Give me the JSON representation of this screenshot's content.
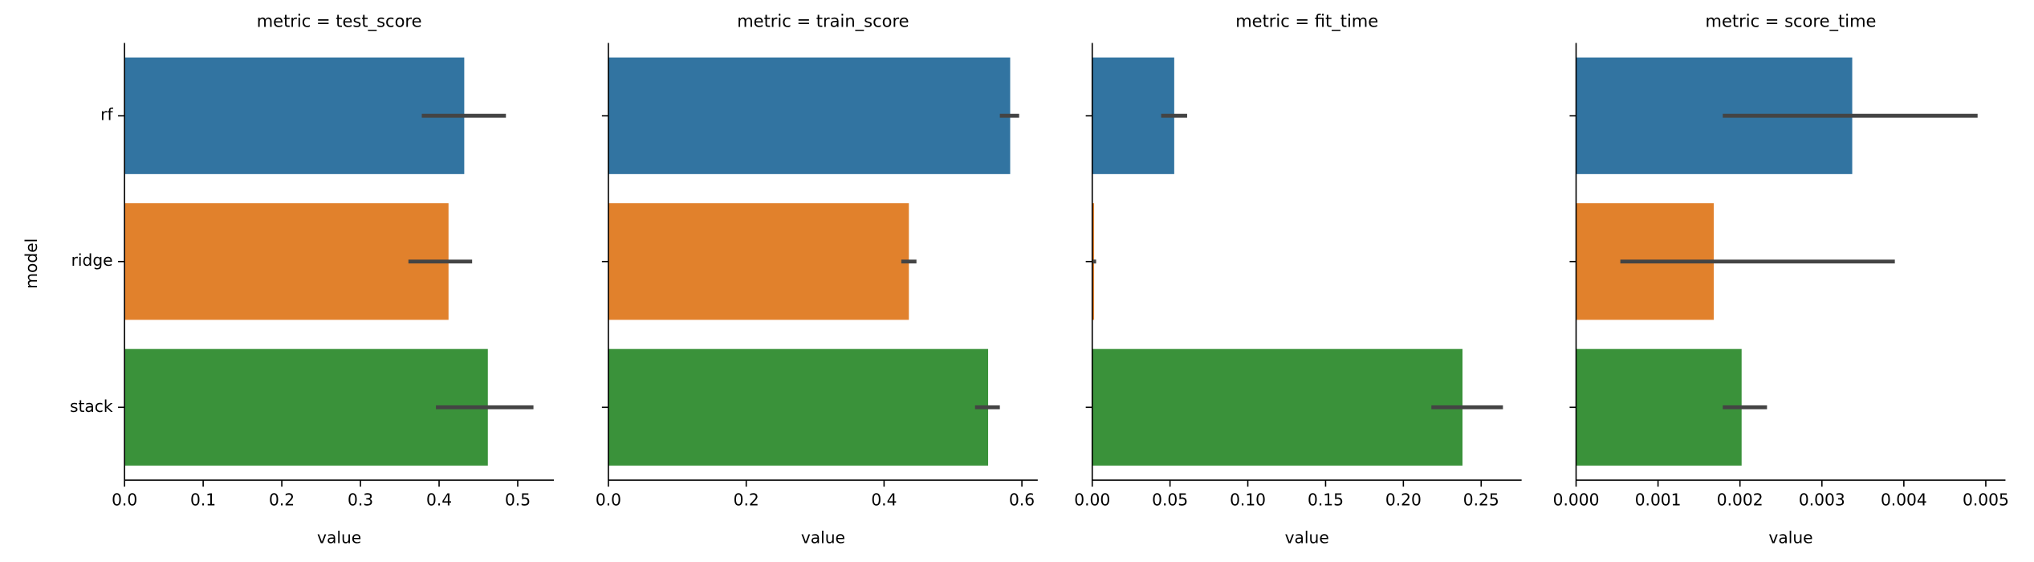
{
  "chart_data": [
    {
      "type": "bar",
      "orientation": "horizontal",
      "title": "metric = test_score",
      "xlabel": "value",
      "ylabel": "model",
      "categories": [
        "rf",
        "ridge",
        "stack"
      ],
      "values": [
        0.432,
        0.412,
        0.462
      ],
      "ci": [
        [
          0.378,
          0.485
        ],
        [
          0.361,
          0.442
        ],
        [
          0.396,
          0.52
        ]
      ],
      "colors": [
        "#3274a1",
        "#e1812c",
        "#3a923a"
      ],
      "errorbar_color": "#444444",
      "xlim": [
        0,
        0.546
      ],
      "xticks": [
        {
          "value": 0,
          "label": "0.0"
        },
        0.1,
        0.2,
        0.3,
        0.4,
        0.5
      ]
    },
    {
      "type": "bar",
      "orientation": "horizontal",
      "title": "metric = train_score",
      "xlabel": "value",
      "values": [
        0.583,
        0.436,
        0.551
      ],
      "ci": [
        [
          0.568,
          0.596
        ],
        [
          0.425,
          0.447
        ],
        [
          0.532,
          0.568
        ]
      ],
      "colors": [
        "#3274a1",
        "#e1812c",
        "#3a923a"
      ],
      "errorbar_color": "#444444",
      "xlim": [
        0,
        0.623
      ],
      "xticks": [
        {
          "value": 0,
          "label": "0.0"
        },
        0.2,
        0.4,
        0.6
      ]
    },
    {
      "type": "bar",
      "orientation": "horizontal",
      "title": "metric = fit_time",
      "xlabel": "value",
      "values": [
        0.0527,
        0.0012,
        0.238
      ],
      "ci": [
        [
          0.0443,
          0.061
        ],
        [
          0.0005,
          0.0025
        ],
        [
          0.218,
          0.264
        ]
      ],
      "colors": [
        "#3274a1",
        "#e1812c",
        "#3a923a"
      ],
      "errorbar_color": "#444444",
      "xlim": [
        0,
        0.276
      ],
      "xticks": [
        {
          "value": 0,
          "label": "0.00"
        },
        0.05,
        {
          "value": 0.1,
          "label": "0.10"
        },
        0.15,
        {
          "value": 0.2,
          "label": "0.20"
        },
        0.25
      ]
    },
    {
      "type": "bar",
      "orientation": "horizontal",
      "title": "metric = score_time",
      "xlabel": "value",
      "values": [
        0.00337,
        0.00168,
        0.00202
      ],
      "ci": [
        [
          0.00179,
          0.0049
        ],
        [
          0.00054,
          0.00389
        ],
        [
          0.00179,
          0.00233
        ]
      ],
      "colors": [
        "#3274a1",
        "#e1812c",
        "#3a923a"
      ],
      "errorbar_color": "#444444",
      "xlim": [
        0,
        0.00524
      ],
      "xticks": [
        {
          "value": 0,
          "label": "0.000"
        },
        0.001,
        0.002,
        0.003,
        0.004,
        0.005
      ]
    }
  ]
}
